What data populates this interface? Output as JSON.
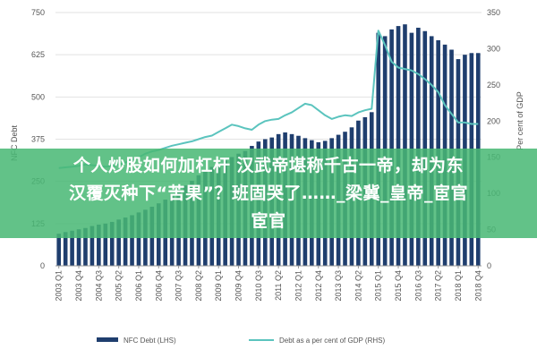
{
  "chart_data": {
    "type": "bar+line",
    "categories": [
      "2003 Q1",
      "2003 Q2",
      "2003 Q3",
      "2003 Q4",
      "2004 Q1",
      "2004 Q2",
      "2004 Q3",
      "2004 Q4",
      "2005 Q1",
      "2005 Q2",
      "2005 Q3",
      "2005 Q4",
      "2006 Q1",
      "2006 Q2",
      "2006 Q3",
      "2006 Q4",
      "2007 Q1",
      "2007 Q2",
      "2007 Q3",
      "2007 Q4",
      "2008 Q1",
      "2008 Q2",
      "2008 Q3",
      "2008 Q4",
      "2009 Q1",
      "2009 Q2",
      "2009 Q3",
      "2009 Q4",
      "2010 Q1",
      "2010 Q2",
      "2010 Q3",
      "2010 Q4",
      "2011 Q1",
      "2011 Q2",
      "2011 Q3",
      "2011 Q4",
      "2012 Q1",
      "2012 Q2",
      "2012 Q3",
      "2012 Q4",
      "2013 Q1",
      "2013 Q2",
      "2013 Q3",
      "2013 Q4",
      "2014 Q1",
      "2014 Q2",
      "2014 Q3",
      "2014 Q4",
      "2015 Q1",
      "2015 Q2",
      "2015 Q3",
      "2015 Q4",
      "2016 Q1",
      "2016 Q2",
      "2016 Q3",
      "2016 Q4",
      "2017 Q1",
      "2017 Q2",
      "2017 Q3",
      "2017 Q4",
      "2018 Q1",
      "2018 Q2",
      "2018 Q3",
      "2018 Q4"
    ],
    "tick_labels": [
      "2003 Q1",
      "2003 Q4",
      "2004 Q3",
      "2005 Q2",
      "2006 Q1",
      "2006 Q4",
      "2007 Q3",
      "2008 Q2",
      "2009 Q1",
      "2009 Q4",
      "2010 Q3",
      "2011 Q2",
      "2012 Q1",
      "2012 Q4",
      "2013 Q3",
      "2014 Q2",
      "2015 Q1",
      "2015 Q4",
      "2016 Q3",
      "2017 Q2",
      "2018 Q1",
      "2018 Q4"
    ],
    "series": [
      {
        "name": "NFC Debt (LHS)",
        "axis": "left",
        "kind": "bar",
        "color": "#1f3e6e",
        "values": [
          95,
          100,
          104,
          108,
          112,
          118,
          122,
          125,
          130,
          137,
          143,
          150,
          158,
          166,
          175,
          185,
          196,
          208,
          222,
          238,
          252,
          268,
          282,
          293,
          300,
          312,
          322,
          332,
          340,
          355,
          368,
          375,
          380,
          390,
          395,
          390,
          385,
          378,
          372,
          366,
          370,
          378,
          388,
          397,
          410,
          430,
          440,
          455,
          690,
          680,
          700,
          710,
          715,
          690,
          705,
          695,
          680,
          668,
          655,
          640,
          612,
          625,
          630,
          630
        ]
      },
      {
        "name": "Debt as a per cent of GDP (RHS)",
        "axis": "right",
        "kind": "line",
        "color": "#5bc4be",
        "values": [
          135,
          136,
          137,
          138,
          140,
          139,
          138,
          137,
          138,
          140,
          143,
          146,
          150,
          155,
          158,
          160,
          163,
          166,
          168,
          170,
          172,
          175,
          178,
          180,
          185,
          190,
          195,
          193,
          190,
          188,
          195,
          200,
          202,
          203,
          208,
          212,
          218,
          224,
          222,
          215,
          208,
          203,
          206,
          208,
          207,
          212,
          215,
          217,
          325,
          305,
          282,
          274,
          272,
          270,
          265,
          258,
          250,
          240,
          222,
          210,
          198,
          198,
          196,
          196
        ]
      }
    ],
    "left_axis": {
      "min": 0,
      "max": 750,
      "ticks": [
        0,
        125,
        250,
        375,
        500,
        625,
        750
      ]
    },
    "right_axis": {
      "min": 0,
      "max": 350,
      "ticks": [
        0,
        50,
        100,
        150,
        200,
        250,
        300,
        350
      ],
      "label": "Per cent of GDP"
    },
    "left_axis_label": "NFC Debt",
    "grid": true,
    "legend": "bottom"
  },
  "overlay": {
    "line1": "个人炒股如何加杠杆 汉武帝堪称千古一帝，却为东",
    "line2": "汉覆灭种下“苦果”？班固哭了……_梁冀_皇帝_宦官",
    "line3": "宦官"
  },
  "colors": {
    "bar": "#1f3e6e",
    "line": "#5bc4be",
    "banner": "#48b874",
    "grid": "#e2e2e2"
  }
}
